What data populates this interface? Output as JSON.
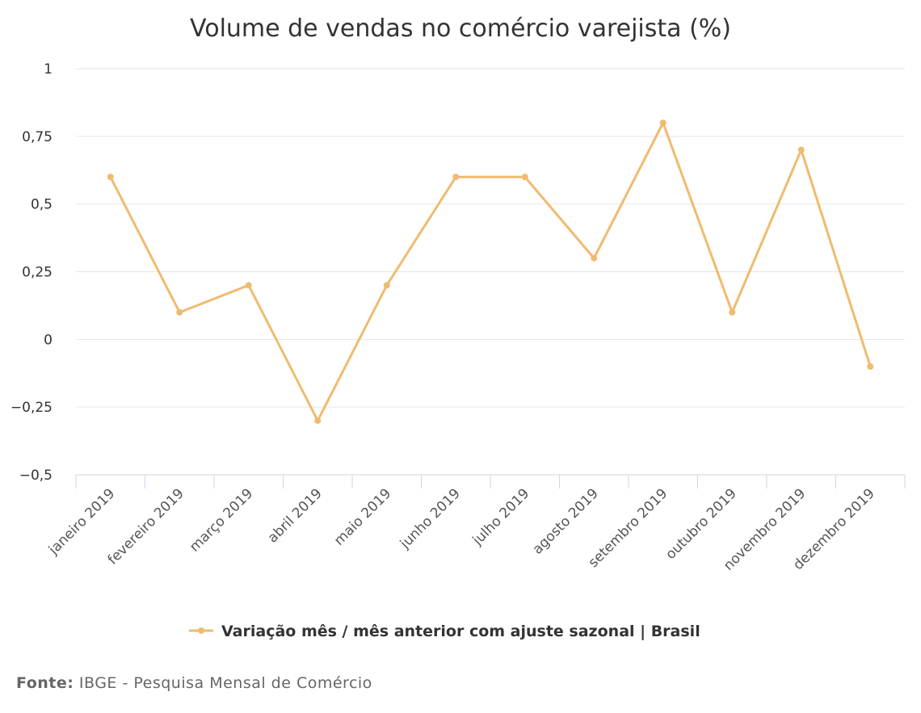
{
  "chart_data": {
    "type": "line",
    "title": "Volume de vendas no comércio varejista (%)",
    "xlabel": "",
    "ylabel": "",
    "categories": [
      "janeiro 2019",
      "fevereiro 2019",
      "março 2019",
      "abril 2019",
      "maio 2019",
      "junho 2019",
      "julho 2019",
      "agosto 2019",
      "setembro 2019",
      "outubro 2019",
      "novembro 2019",
      "dezembro 2019"
    ],
    "series": [
      {
        "name": "Variação mês / mês anterior com ajuste sazonal | Brasil",
        "color": "#f0bb6f",
        "values": [
          0.6,
          0.1,
          0.2,
          -0.3,
          0.2,
          0.6,
          0.6,
          0.3,
          0.8,
          0.1,
          0.7,
          -0.1
        ]
      }
    ],
    "ylim": [
      -0.5,
      1
    ],
    "yticks": [
      1,
      0.75,
      0.5,
      0.25,
      0,
      -0.25,
      -0.5
    ],
    "ytick_labels": [
      "1",
      "0,75",
      "0,5",
      "0,25",
      "0",
      "−0,25",
      "−0,5"
    ],
    "grid": true,
    "legend_position": "bottom-center"
  },
  "source": {
    "label": "Fonte:",
    "text": " IBGE - Pesquisa Mensal de Comércio"
  }
}
